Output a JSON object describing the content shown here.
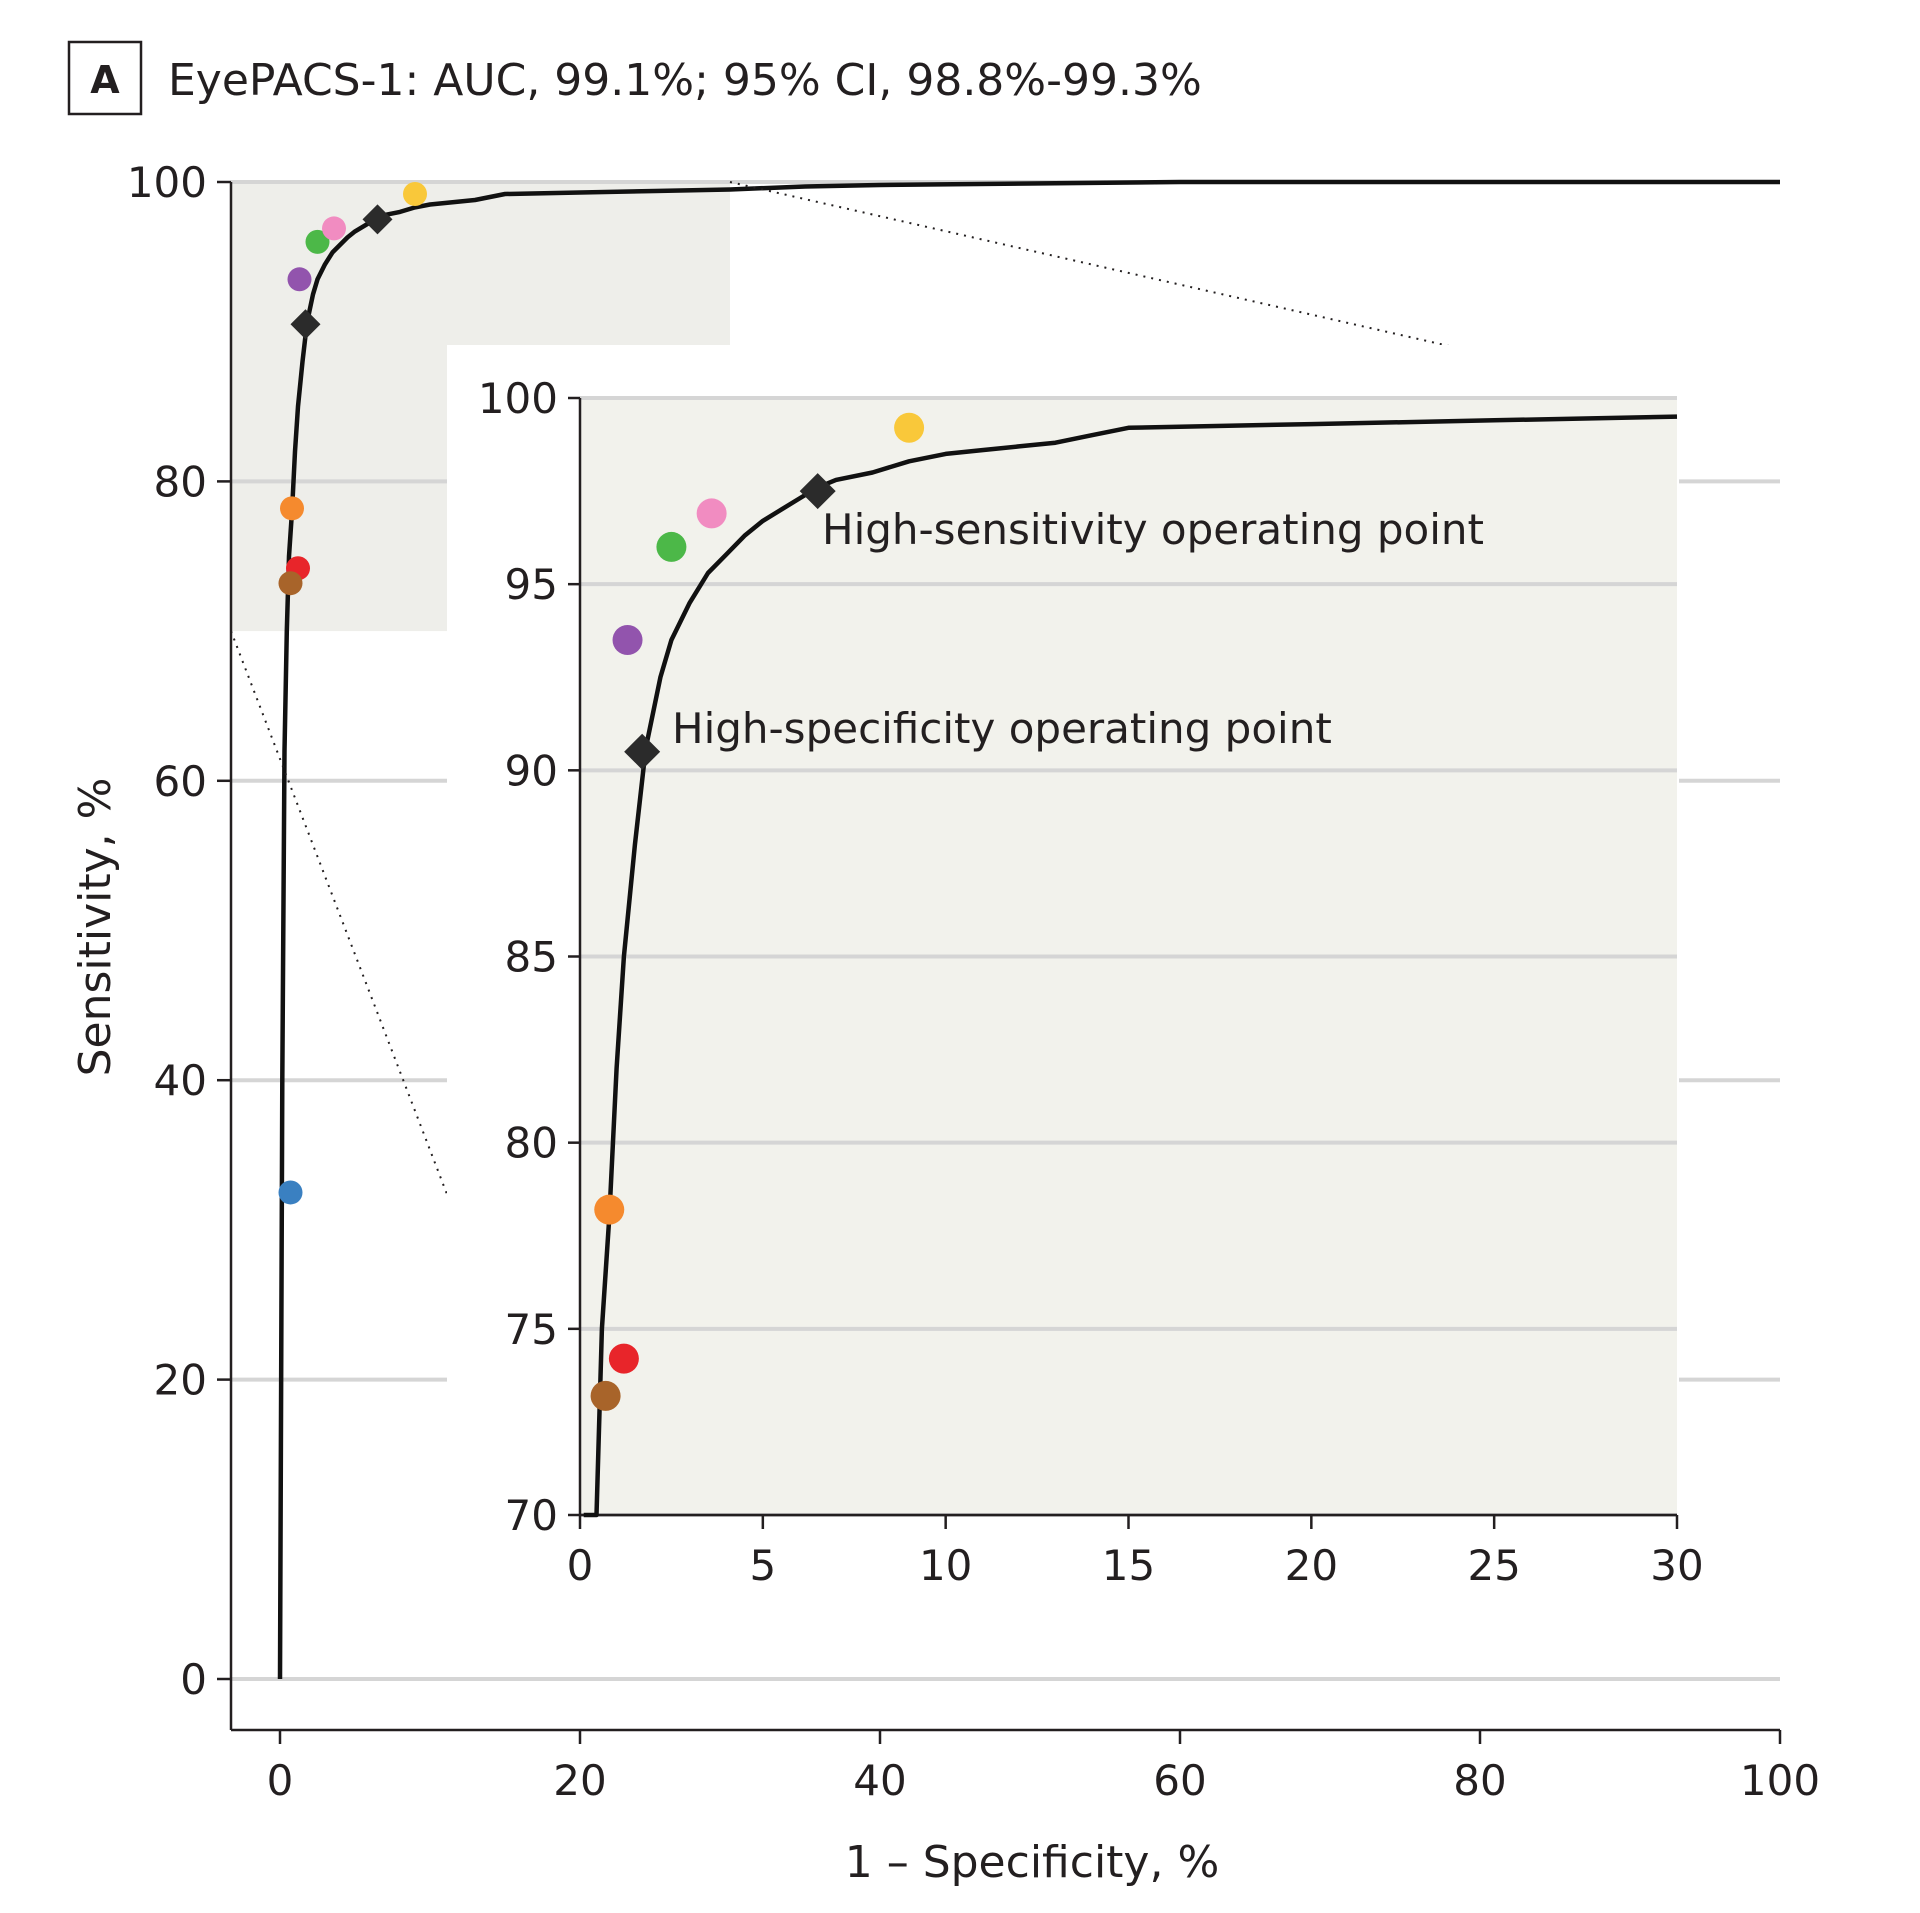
{
  "panel": {
    "letter": "A",
    "title": "EyePACS-1: AUC, 99.1%; 95% CI, 98.8%-99.3%"
  },
  "colors": {
    "blue": "#3a80c1",
    "orange": "#f58a2e",
    "red": "#e8252a",
    "brown": "#a8642a",
    "purple": "#9254ad",
    "green": "#4cb848",
    "pink": "#f18cc1",
    "yellow": "#f9c83a",
    "curve": "#111111",
    "operating_point": "#2b2b2b",
    "zoom_bg": "#eeeeea",
    "inset_bg": "#f2f2ec"
  },
  "chart_data": [
    {
      "type": "line",
      "title": "EyePACS-1: AUC, 99.1%; 95% CI, 98.8%-99.3%",
      "xlabel": "1 – Specificity, %",
      "ylabel": "Sensitivity, %",
      "xlim": [
        0,
        100
      ],
      "ylim": [
        0,
        100
      ],
      "xticks": [
        "0",
        "20",
        "40",
        "60",
        "80",
        "100"
      ],
      "yticks": [
        "0",
        "20",
        "40",
        "60",
        "80",
        "100"
      ],
      "grid": "horizontal",
      "series": [
        {
          "x": [
            0,
            0.15,
            0.3,
            0.45,
            0.6,
            0.8,
            1.0,
            1.2,
            1.5,
            1.8,
            2.2,
            2.5,
            3.0,
            3.5,
            4.0,
            4.5,
            5.0,
            5.5,
            6.0,
            6.5,
            7.0,
            8.0,
            9.0,
            10.0,
            11.0,
            12.0,
            13.0,
            14.0,
            15.0,
            20.0,
            25.0,
            30.0,
            35.0,
            40.0,
            50.0,
            60.0,
            70.0,
            80.0,
            90.0,
            100.0
          ],
          "y": [
            0,
            40,
            62,
            70,
            75,
            78,
            82,
            85,
            88,
            90.6,
            92.5,
            93.5,
            94.5,
            95.3,
            95.8,
            96.3,
            96.7,
            97.0,
            97.3,
            97.6,
            97.8,
            98.0,
            98.3,
            98.5,
            98.6,
            98.7,
            98.8,
            99.0,
            99.2,
            99.3,
            99.4,
            99.5,
            99.7,
            99.8,
            99.9,
            100,
            100,
            100,
            100,
            100
          ]
        }
      ],
      "operating_points": [
        {
          "label": "High-specificity operating point",
          "x": 1.7,
          "y": 90.5
        },
        {
          "label": "High-sensitivity operating point",
          "x": 6.5,
          "y": 97.5
        }
      ],
      "points": [
        {
          "color": "blue",
          "x": 0.7,
          "y": 32.5
        },
        {
          "color": "orange",
          "x": 0.8,
          "y": 78.2
        },
        {
          "color": "red",
          "x": 1.2,
          "y": 74.2
        },
        {
          "color": "brown",
          "x": 0.7,
          "y": 73.2
        },
        {
          "color": "purple",
          "x": 1.3,
          "y": 93.5
        },
        {
          "color": "green",
          "x": 2.5,
          "y": 96.0
        },
        {
          "color": "pink",
          "x": 3.6,
          "y": 96.9
        },
        {
          "color": "yellow",
          "x": 9.0,
          "y": 99.2
        }
      ]
    },
    {
      "type": "line",
      "title": "",
      "xlabel": "",
      "ylabel": "",
      "xlim": [
        0,
        30
      ],
      "ylim": [
        70,
        100
      ],
      "xticks": [
        "0",
        "5",
        "10",
        "15",
        "20",
        "25",
        "30"
      ],
      "yticks": [
        "70",
        "75",
        "80",
        "85",
        "90",
        "95",
        "100"
      ],
      "grid": "horizontal",
      "annotations": [
        "High-sensitivity operating point",
        "High-specificity operating point"
      ]
    }
  ]
}
